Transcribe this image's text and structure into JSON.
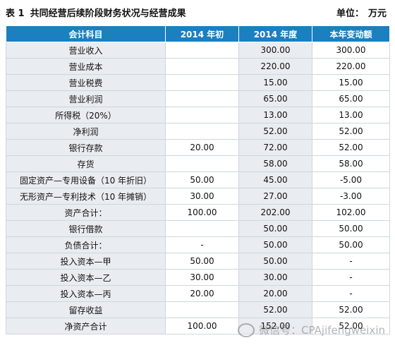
{
  "title": {
    "number": "表 1",
    "text": "共同经营后续阶段财务状况与经营成果",
    "unit_label": "单位：",
    "unit_value": "万元"
  },
  "table": {
    "headers": [
      "会计科目",
      "2014 年初",
      "2014 年度",
      "本年变动额"
    ],
    "rows": [
      [
        "营业收入",
        "",
        "300.00",
        "300.00"
      ],
      [
        "营业成本",
        "",
        "220.00",
        "220.00"
      ],
      [
        "营业税费",
        "",
        "15.00",
        "15.00"
      ],
      [
        "营业利润",
        "",
        "65.00",
        "65.00"
      ],
      [
        "所得税（20%）",
        "",
        "13.00",
        "13.00"
      ],
      [
        "净利润",
        "",
        "52.00",
        "52.00"
      ],
      [
        "银行存款",
        "20.00",
        "72.00",
        "52.00"
      ],
      [
        "存货",
        "",
        "58.00",
        "58.00"
      ],
      [
        "固定资产—专用设备（10 年折旧）",
        "50.00",
        "45.00",
        "-5.00"
      ],
      [
        "无形资产—专利技术（10 年摊销）",
        "30.00",
        "27.00",
        "-3.00"
      ],
      [
        "资产合计：",
        "100.00",
        "202.00",
        "102.00"
      ],
      [
        "银行借款",
        "",
        "50.00",
        "50.00"
      ],
      [
        "负债合计：",
        "-",
        "50.00",
        "50.00"
      ],
      [
        "投入资本—甲",
        "50.00",
        "50.00",
        "-"
      ],
      [
        "投入资本—乙",
        "30.00",
        "30.00",
        "-"
      ],
      [
        "投入资本—丙",
        "20.00",
        "20.00",
        "-"
      ],
      [
        "留存收益",
        "",
        "52.00",
        "52.00"
      ],
      [
        "净资产合计",
        "100.00",
        "152.00",
        "52.00"
      ]
    ]
  },
  "watermark": {
    "icon": "wechat-icon",
    "text": "微信号：CPAjifengweixin"
  }
}
